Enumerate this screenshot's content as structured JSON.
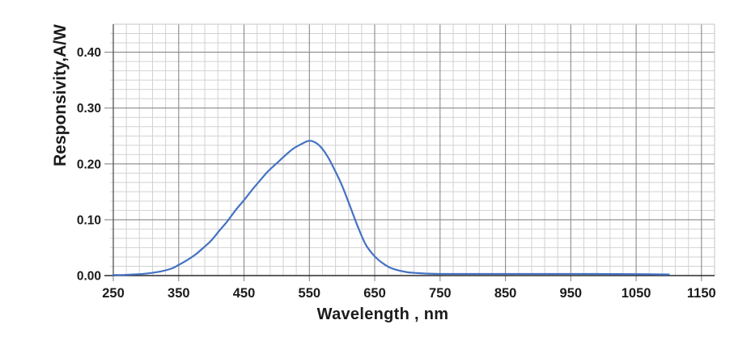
{
  "chart_data": {
    "type": "line",
    "title": "",
    "xlabel": "Wavelength , nm",
    "ylabel": "Responsivity,A/W",
    "grid": true,
    "legend": "none",
    "x_axis": {
      "min": 250,
      "max": 1170,
      "major_step": 100,
      "minor_step": 20,
      "tick_values": [
        250,
        350,
        450,
        550,
        650,
        750,
        850,
        950,
        1050,
        1150
      ],
      "tick_labels": [
        "250",
        "350",
        "450",
        "550",
        "650",
        "750",
        "850",
        "950",
        "1050",
        "1150"
      ]
    },
    "y_axis": {
      "min": 0,
      "max": 0.45,
      "major_step": 0.1,
      "minor_step": 0.0166667,
      "tick_values": [
        0.0,
        0.1,
        0.2,
        0.3,
        0.4
      ],
      "tick_labels": [
        "0.00",
        "0.10",
        "0.20",
        "0.30",
        "0.40"
      ]
    },
    "series": [
      {
        "name": "responsivity",
        "color": "#4472c4",
        "peak": {
          "x": 550,
          "y": 0.241
        },
        "points": [
          [
            250,
            0.001
          ],
          [
            265,
            0.001
          ],
          [
            280,
            0.002
          ],
          [
            295,
            0.003
          ],
          [
            310,
            0.005
          ],
          [
            325,
            0.008
          ],
          [
            340,
            0.013
          ],
          [
            350,
            0.019
          ],
          [
            362,
            0.027
          ],
          [
            375,
            0.037
          ],
          [
            388,
            0.05
          ],
          [
            400,
            0.063
          ],
          [
            412,
            0.08
          ],
          [
            425,
            0.098
          ],
          [
            437,
            0.117
          ],
          [
            450,
            0.135
          ],
          [
            462,
            0.153
          ],
          [
            475,
            0.171
          ],
          [
            487,
            0.187
          ],
          [
            500,
            0.201
          ],
          [
            512,
            0.214
          ],
          [
            525,
            0.227
          ],
          [
            537,
            0.235
          ],
          [
            548,
            0.241
          ],
          [
            556,
            0.24
          ],
          [
            566,
            0.232
          ],
          [
            578,
            0.213
          ],
          [
            590,
            0.186
          ],
          [
            600,
            0.161
          ],
          [
            612,
            0.125
          ],
          [
            624,
            0.088
          ],
          [
            636,
            0.056
          ],
          [
            648,
            0.037
          ],
          [
            660,
            0.024
          ],
          [
            672,
            0.015
          ],
          [
            684,
            0.01
          ],
          [
            700,
            0.006
          ],
          [
            715,
            0.0045
          ],
          [
            730,
            0.0035
          ],
          [
            750,
            0.003
          ],
          [
            800,
            0.003
          ],
          [
            850,
            0.003
          ],
          [
            900,
            0.003
          ],
          [
            950,
            0.003
          ],
          [
            1000,
            0.0028
          ],
          [
            1050,
            0.0025
          ],
          [
            1100,
            0.002
          ]
        ]
      }
    ]
  },
  "colors": {
    "background": "#ffffff",
    "curve": "#4472c4",
    "grid_minor": "#d2d2d2",
    "grid_major": "#898989",
    "axis_bottom": "#2b2b2b",
    "axis_left": "#595959",
    "border_light": "#c6c6c6",
    "text": "#1c1c1c"
  }
}
